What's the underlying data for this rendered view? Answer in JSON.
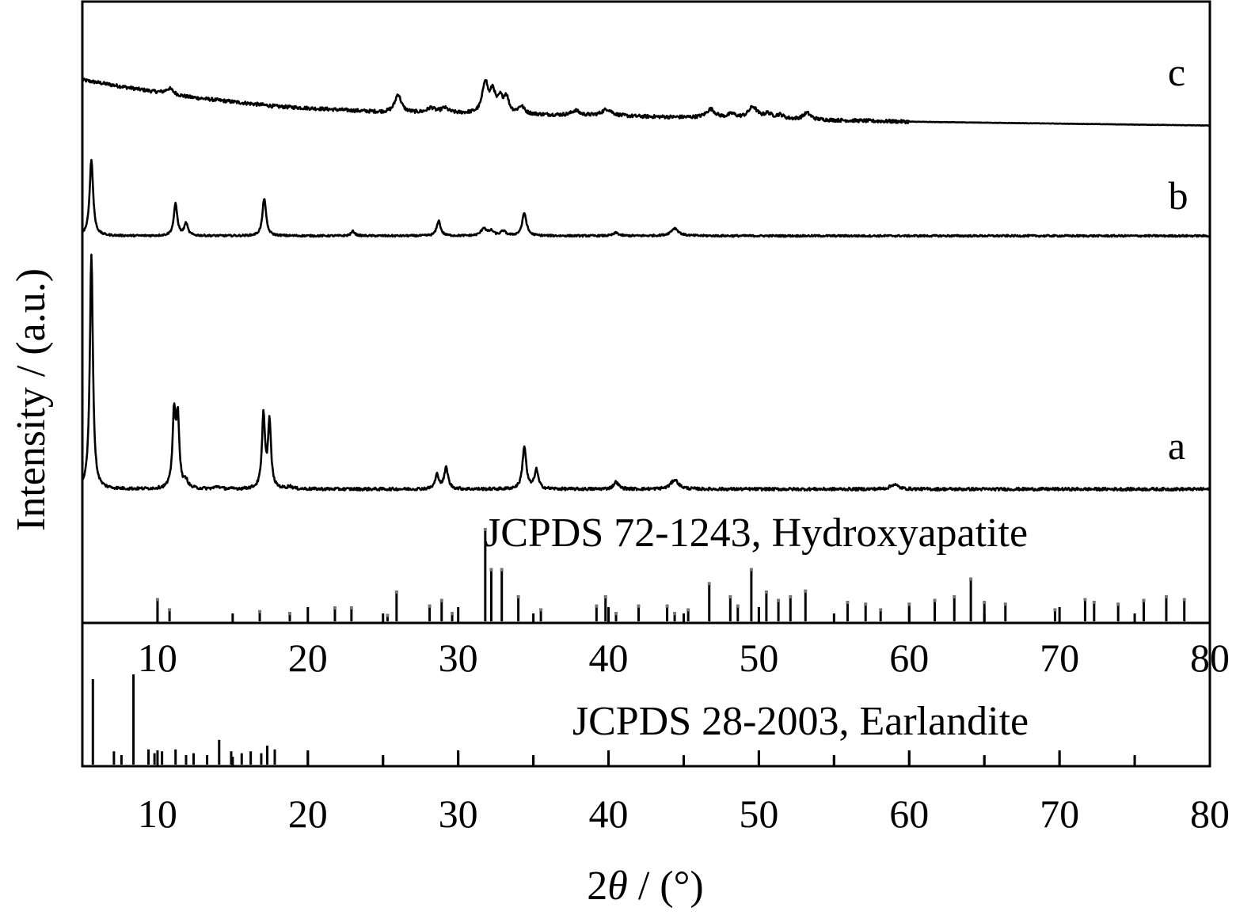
{
  "chart_data": {
    "type": "line",
    "xlabel": "2θ / (°)",
    "xlabel_prefix": "2",
    "xlabel_symbol": "θ",
    "xlabel_suffix": " / (°)",
    "ylabel": "Intensity / (a.u.)",
    "xlim": [
      5,
      80
    ],
    "xticks": [
      10,
      20,
      30,
      40,
      50,
      60,
      70,
      80
    ],
    "y_ticks_shown": false,
    "grid": false,
    "legend": "none",
    "colors": {
      "line": "#000000",
      "background": "#ffffff",
      "peak_cap": "#777777"
    },
    "series": [
      {
        "name": "c",
        "baseline": [
          [
            5,
            0.0
          ],
          [
            8,
            0.04
          ],
          [
            12,
            0.09
          ],
          [
            18,
            0.14
          ],
          [
            25,
            0.17
          ],
          [
            40,
            0.19
          ],
          [
            60,
            0.22
          ],
          [
            80,
            0.24
          ]
        ],
        "noise": 0.018,
        "noise_end": 60,
        "peaks": [
          {
            "x": 10.8,
            "h": 0.06,
            "w": 0.3
          },
          {
            "x": 26.0,
            "h": 0.19,
            "w": 0.25
          },
          {
            "x": 28.2,
            "h": 0.05,
            "w": 0.3
          },
          {
            "x": 29.1,
            "h": 0.05,
            "w": 0.3
          },
          {
            "x": 31.8,
            "h": 0.33,
            "w": 0.22
          },
          {
            "x": 32.3,
            "h": 0.22,
            "w": 0.2
          },
          {
            "x": 32.8,
            "h": 0.14,
            "w": 0.2
          },
          {
            "x": 33.2,
            "h": 0.17,
            "w": 0.2
          },
          {
            "x": 34.2,
            "h": 0.08,
            "w": 0.25
          },
          {
            "x": 37.8,
            "h": 0.05,
            "w": 0.3
          },
          {
            "x": 39.9,
            "h": 0.07,
            "w": 0.4
          },
          {
            "x": 46.8,
            "h": 0.09,
            "w": 0.35
          },
          {
            "x": 48.2,
            "h": 0.04,
            "w": 0.3
          },
          {
            "x": 49.6,
            "h": 0.12,
            "w": 0.35
          },
          {
            "x": 50.6,
            "h": 0.05,
            "w": 0.3
          },
          {
            "x": 51.4,
            "h": 0.04,
            "w": 0.3
          },
          {
            "x": 53.2,
            "h": 0.07,
            "w": 0.3
          }
        ]
      },
      {
        "name": "b",
        "baseline": [
          [
            5,
            0.0
          ],
          [
            80,
            0.0
          ]
        ],
        "noise": 0.012,
        "peaks": [
          {
            "x": 5.6,
            "h": 1.0,
            "w": 0.14
          },
          {
            "x": 11.2,
            "h": 0.42,
            "w": 0.14
          },
          {
            "x": 11.9,
            "h": 0.16,
            "w": 0.14
          },
          {
            "x": 17.1,
            "h": 0.5,
            "w": 0.14
          },
          {
            "x": 23.0,
            "h": 0.06,
            "w": 0.15
          },
          {
            "x": 28.7,
            "h": 0.2,
            "w": 0.15
          },
          {
            "x": 31.7,
            "h": 0.1,
            "w": 0.2
          },
          {
            "x": 32.2,
            "h": 0.06,
            "w": 0.2
          },
          {
            "x": 33.0,
            "h": 0.06,
            "w": 0.2
          },
          {
            "x": 34.4,
            "h": 0.3,
            "w": 0.17
          },
          {
            "x": 40.5,
            "h": 0.04,
            "w": 0.2
          },
          {
            "x": 44.4,
            "h": 0.1,
            "w": 0.3
          }
        ]
      },
      {
        "name": "a",
        "baseline": [
          [
            5,
            0.0
          ],
          [
            80,
            0.0
          ]
        ],
        "noise": 0.006,
        "peaks": [
          {
            "x": 5.6,
            "h": 1.0,
            "w": 0.12
          },
          {
            "x": 11.1,
            "h": 0.31,
            "w": 0.12
          },
          {
            "x": 11.35,
            "h": 0.29,
            "w": 0.12
          },
          {
            "x": 11.9,
            "h": 0.03,
            "w": 0.15
          },
          {
            "x": 17.05,
            "h": 0.31,
            "w": 0.12
          },
          {
            "x": 17.45,
            "h": 0.28,
            "w": 0.12
          },
          {
            "x": 14.0,
            "h": 0.01,
            "w": 0.2
          },
          {
            "x": 18.8,
            "h": 0.01,
            "w": 0.2
          },
          {
            "x": 28.6,
            "h": 0.06,
            "w": 0.15
          },
          {
            "x": 29.2,
            "h": 0.09,
            "w": 0.15
          },
          {
            "x": 34.4,
            "h": 0.18,
            "w": 0.15
          },
          {
            "x": 35.2,
            "h": 0.08,
            "w": 0.15
          },
          {
            "x": 40.5,
            "h": 0.03,
            "w": 0.2
          },
          {
            "x": 44.4,
            "h": 0.04,
            "w": 0.3
          },
          {
            "x": 59.0,
            "h": 0.02,
            "w": 0.3
          }
        ]
      }
    ],
    "curve_labels": [
      "c",
      "b",
      "a"
    ],
    "reference_patterns": [
      {
        "name": "JCPDS 72-1243, Hydroxyapatite",
        "sticks": [
          [
            10.0,
            0.25
          ],
          [
            10.8,
            0.14
          ],
          [
            16.8,
            0.12
          ],
          [
            18.8,
            0.1
          ],
          [
            21.8,
            0.16
          ],
          [
            22.9,
            0.16
          ],
          [
            25.3,
            0.08
          ],
          [
            25.9,
            0.33
          ],
          [
            28.1,
            0.18
          ],
          [
            28.9,
            0.24
          ],
          [
            29.6,
            0.1
          ],
          [
            31.8,
            1.0
          ],
          [
            32.2,
            0.57
          ],
          [
            32.9,
            0.57
          ],
          [
            34.0,
            0.28
          ],
          [
            35.5,
            0.14
          ],
          [
            39.2,
            0.18
          ],
          [
            39.8,
            0.28
          ],
          [
            40.5,
            0.1
          ],
          [
            42.0,
            0.18
          ],
          [
            43.9,
            0.18
          ],
          [
            44.4,
            0.1
          ],
          [
            45.3,
            0.14
          ],
          [
            46.7,
            0.42
          ],
          [
            48.1,
            0.28
          ],
          [
            48.6,
            0.18
          ],
          [
            49.5,
            0.57
          ],
          [
            50.5,
            0.33
          ],
          [
            51.3,
            0.24
          ],
          [
            52.1,
            0.28
          ],
          [
            53.1,
            0.34
          ],
          [
            55.9,
            0.22
          ],
          [
            57.1,
            0.2
          ],
          [
            58.1,
            0.14
          ],
          [
            60.0,
            0.2
          ],
          [
            61.7,
            0.24
          ],
          [
            63.0,
            0.28
          ],
          [
            64.1,
            0.47
          ],
          [
            65.0,
            0.22
          ],
          [
            66.4,
            0.2
          ],
          [
            69.7,
            0.14
          ],
          [
            71.7,
            0.25
          ],
          [
            72.3,
            0.22
          ],
          [
            73.9,
            0.2
          ],
          [
            75.6,
            0.24
          ],
          [
            77.1,
            0.28
          ],
          [
            78.3,
            0.25
          ]
        ]
      },
      {
        "name": "JCPDS 28-2003, Earlandite",
        "sticks": [
          [
            5.7,
            0.9
          ],
          [
            8.4,
            0.95
          ],
          [
            7.1,
            0.14
          ],
          [
            7.6,
            0.1
          ],
          [
            9.4,
            0.16
          ],
          [
            9.8,
            0.12
          ],
          [
            10.3,
            0.14
          ],
          [
            11.2,
            0.16
          ],
          [
            11.9,
            0.1
          ],
          [
            12.4,
            0.12
          ],
          [
            13.3,
            0.1
          ],
          [
            14.1,
            0.26
          ],
          [
            14.9,
            0.14
          ],
          [
            15.6,
            0.12
          ],
          [
            16.2,
            0.14
          ],
          [
            16.9,
            0.12
          ],
          [
            17.3,
            0.2
          ],
          [
            17.8,
            0.16
          ],
          [
            20.0,
            0.14
          ],
          [
            25.0,
            0.1
          ],
          [
            30.0,
            0.14
          ],
          [
            35.0,
            0.1
          ],
          [
            40.0,
            0.14
          ],
          [
            45.0,
            0.1
          ],
          [
            50.0,
            0.14
          ],
          [
            55.0,
            0.1
          ],
          [
            60.0,
            0.14
          ],
          [
            65.0,
            0.1
          ],
          [
            70.0,
            0.14
          ],
          [
            75.0,
            0.1
          ]
        ]
      }
    ]
  }
}
